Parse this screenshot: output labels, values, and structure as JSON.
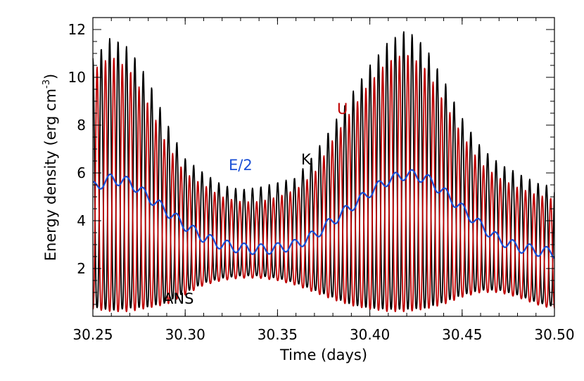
{
  "chart_data": {
    "type": "line",
    "title": "",
    "xlabel": "Time (days)",
    "ylabel": "Energy density (erg cm",
    "ylabel_superscript": "-3",
    "ylabel_close": ")",
    "xlim": [
      30.25,
      30.5
    ],
    "ylim": [
      0,
      12.5
    ],
    "x_ticks": [
      30.25,
      30.3,
      30.35,
      30.4,
      30.45,
      30.5
    ],
    "x_tick_labels": [
      "30.25",
      "30.30",
      "30.35",
      "30.40",
      "30.45",
      "30.50"
    ],
    "y_ticks": [
      2,
      4,
      6,
      8,
      10,
      12
    ],
    "y_tick_labels": [
      "2",
      "4",
      "6",
      "8",
      "10",
      "12"
    ],
    "annotations": [
      {
        "text": "U",
        "color": "#c00000",
        "series": "U"
      },
      {
        "text": "E/2",
        "color": "#1a4fd6",
        "series": "E/2"
      },
      {
        "text": "K",
        "color": "#000000",
        "series": "K"
      },
      {
        "text": "ANS",
        "color": "#000000",
        "series": "note"
      }
    ],
    "oscillation_period_days": 0.00455,
    "series": [
      {
        "name": "K",
        "color": "#000000",
        "kind": "oscillation",
        "phase": 0.0,
        "x": [
          30.25,
          30.26,
          30.27,
          30.28,
          30.29,
          30.3,
          30.31,
          30.32,
          30.33,
          30.34,
          30.35,
          30.36,
          30.37,
          30.38,
          30.39,
          30.4,
          30.41,
          30.42,
          30.43,
          30.44,
          30.45,
          30.46,
          30.47,
          30.48,
          30.49,
          30.5
        ],
        "peak": [
          10.8,
          11.7,
          11.2,
          9.9,
          8.1,
          6.6,
          6.0,
          5.5,
          5.3,
          5.4,
          5.6,
          5.8,
          6.8,
          8.0,
          9.3,
          10.5,
          11.5,
          12.0,
          11.3,
          9.9,
          8.3,
          7.1,
          6.4,
          6.0,
          5.6,
          5.4
        ],
        "trough": [
          0.4,
          0.25,
          0.35,
          0.4,
          0.6,
          1.0,
          1.4,
          1.6,
          1.7,
          1.7,
          1.6,
          1.4,
          1.1,
          0.8,
          0.5,
          0.35,
          0.3,
          0.3,
          0.35,
          0.6,
          0.9,
          1.1,
          1.1,
          0.9,
          0.6,
          0.4
        ]
      },
      {
        "name": "U",
        "color": "#c00000",
        "kind": "oscillation",
        "phase": 0.5,
        "x": [
          30.25,
          30.26,
          30.27,
          30.28,
          30.29,
          30.3,
          30.31,
          30.32,
          30.33,
          30.34,
          30.35,
          30.36,
          30.37,
          30.38,
          30.39,
          30.4,
          30.41,
          30.42,
          30.43,
          30.44,
          30.45,
          30.46,
          30.47,
          30.48,
          30.49,
          30.5
        ],
        "peak": [
          10.3,
          10.9,
          10.3,
          8.9,
          7.2,
          6.0,
          5.5,
          5.0,
          4.8,
          4.8,
          5.0,
          5.3,
          6.0,
          7.4,
          8.6,
          9.8,
          10.7,
          11.0,
          10.4,
          9.0,
          7.6,
          6.4,
          5.8,
          5.4,
          5.1,
          4.9
        ],
        "trough": [
          0.3,
          0.2,
          0.2,
          0.35,
          0.5,
          0.9,
          1.3,
          1.5,
          1.6,
          1.6,
          1.5,
          1.3,
          1.0,
          0.7,
          0.45,
          0.3,
          0.2,
          0.2,
          0.3,
          0.5,
          0.8,
          1.0,
          1.0,
          0.8,
          0.5,
          0.3
        ]
      },
      {
        "name": "E/2",
        "color": "#1a4fd6",
        "kind": "smooth",
        "ripple_amplitude": 0.22,
        "x": [
          30.25,
          30.26,
          30.27,
          30.28,
          30.29,
          30.3,
          30.31,
          30.32,
          30.33,
          30.34,
          30.35,
          30.36,
          30.37,
          30.38,
          30.39,
          30.4,
          30.41,
          30.42,
          30.43,
          30.44,
          30.45,
          30.46,
          30.47,
          30.48,
          30.49,
          30.5
        ],
        "y": [
          5.4,
          5.75,
          5.6,
          5.0,
          4.4,
          3.8,
          3.3,
          3.0,
          2.85,
          2.8,
          2.85,
          3.0,
          3.4,
          4.0,
          4.6,
          5.2,
          5.7,
          5.95,
          5.8,
          5.2,
          4.5,
          3.8,
          3.2,
          2.9,
          2.75,
          2.65
        ]
      }
    ]
  }
}
